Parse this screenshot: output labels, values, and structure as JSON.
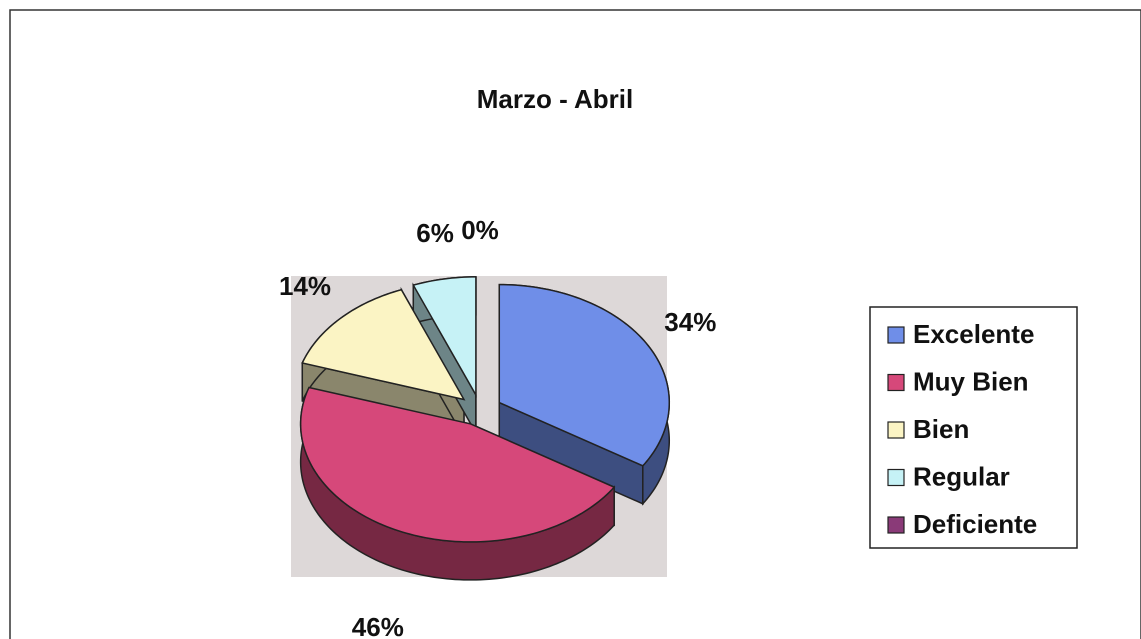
{
  "chart_data": {
    "type": "pie",
    "title": "Marzo - Abril",
    "categories": [
      "Excelente",
      "Muy Bien",
      "Bien",
      "Regular",
      "Deficiente"
    ],
    "values": [
      34,
      46,
      14,
      6,
      0
    ],
    "value_labels": [
      "34%",
      "46%",
      "14%",
      "6%",
      "0%"
    ],
    "colors": [
      "#6f8ee8",
      "#d6487a",
      "#fbf4c4",
      "#c6f2f6",
      "#8a3a78"
    ],
    "legend": "right"
  }
}
